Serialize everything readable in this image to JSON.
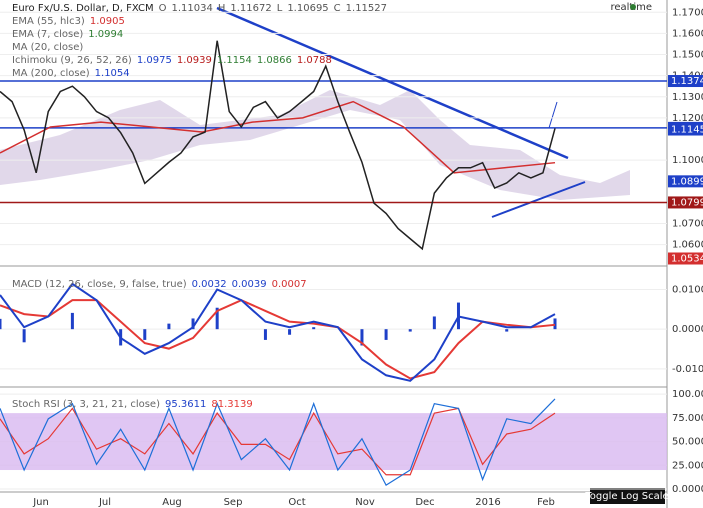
{
  "header": {
    "symbol": "Euro Fx/U.S. Dollar, D, FXCM",
    "ohlc": [
      {
        "label": "O",
        "value": "1.11034"
      },
      {
        "label": "H",
        "value": "1.11672"
      },
      {
        "label": "L",
        "value": "1.10695"
      },
      {
        "label": "C",
        "value": "1.11527"
      }
    ],
    "realtime": "realtime"
  },
  "indicators": [
    {
      "label": "EMA (55, hlc3)",
      "values": [
        {
          "text": "1.0905",
          "color": "#d32f2f"
        }
      ]
    },
    {
      "label": "EMA (7, close)",
      "values": [
        {
          "text": "1.0994",
          "color": "#2e7d32"
        }
      ]
    },
    {
      "label": "MA (20, close)",
      "values": []
    },
    {
      "label": "Ichimoku (9, 26, 52, 26)",
      "values": [
        {
          "text": "1.0975",
          "color": "#1e40c8"
        },
        {
          "text": "1.0939",
          "color": "#b71c1c"
        },
        {
          "text": "1.1154",
          "color": "#2e7d32"
        },
        {
          "text": "1.0866",
          "color": "#2e7d32"
        },
        {
          "text": "1.0788",
          "color": "#b71c1c"
        }
      ]
    },
    {
      "label": "MA (200, close)",
      "values": [
        {
          "text": "1.1054",
          "color": "#1e40c8"
        }
      ]
    }
  ],
  "price_pane": {
    "ylim": [
      1.0499,
      1.1758
    ],
    "yticks": [
      {
        "value": 1.17,
        "label": "1.17000"
      },
      {
        "value": 1.16,
        "label": "1.16000"
      },
      {
        "value": 1.15,
        "label": "1.15000"
      },
      {
        "value": 1.14,
        "label": "1.14000"
      },
      {
        "value": 1.13,
        "label": "1.13000"
      },
      {
        "value": 1.12,
        "label": "1.12000"
      },
      {
        "value": 1.1,
        "label": "1.10000"
      },
      {
        "value": 1.07,
        "label": "1.07000"
      },
      {
        "value": 1.06,
        "label": "1.06000"
      }
    ],
    "price_labels": [
      {
        "value": 1.13745,
        "label": "1.13745",
        "color": "#1e40c8",
        "line": true
      },
      {
        "value": 1.11527,
        "label": "1.11527",
        "color": "#1e40c8",
        "line": true
      },
      {
        "value": 1.1145,
        "label": "1.11450",
        "color": "#1e40c8",
        "line": false
      },
      {
        "value": 1.08997,
        "label": "1.08997",
        "color": "#1e40c8",
        "line": false
      },
      {
        "value": 1.07998,
        "label": "1.07998",
        "color": "#a01818",
        "line": true
      },
      {
        "value": 1.05345,
        "label": "1.05345",
        "color": "#d32f2f",
        "line": false
      }
    ],
    "close": {
      "name": "close",
      "color": "#222",
      "values": [
        1.1325,
        1.1277,
        1.1143,
        1.094,
        1.123,
        1.1325,
        1.135,
        1.13,
        1.123,
        1.12,
        1.113,
        1.1034,
        1.089,
        1.094,
        1.099,
        1.1034,
        1.111,
        1.1133,
        1.1565,
        1.123,
        1.1157,
        1.125,
        1.1277,
        1.12,
        1.123,
        1.1277,
        1.1325,
        1.1445,
        1.1277,
        1.113,
        1.099,
        1.0796,
        1.0748,
        1.0676,
        1.0628,
        1.058,
        1.0844,
        1.0916,
        1.0964,
        1.0964,
        1.0988,
        1.0868,
        1.0892,
        1.094,
        1.0916,
        1.094,
        1.115
      ]
    },
    "ema55": {
      "name": "EMA (55, hlc3)",
      "color": "#d32f2f",
      "values": [
        1.1034,
        1.1157,
        1.118,
        1.1157,
        1.1133,
        1.118,
        1.12,
        1.1277,
        1.1157,
        1.094,
        1.0964,
        1.0988
      ]
    }
  },
  "macd_pane": {
    "label": "MACD (12, 26, close, 9, false, true)",
    "readouts": [
      {
        "text": "0.0032",
        "color": "#1e40c8"
      },
      {
        "text": "0.0039",
        "color": "#1e40c8"
      },
      {
        "text": "0.0007",
        "color": "#d32f2f"
      }
    ],
    "ylim": [
      -0.0143,
      0.0154
    ],
    "yticks": [
      {
        "value": 0.01,
        "label": "0.0100"
      },
      {
        "value": 0,
        "label": "0.0000"
      },
      {
        "value": -0.01,
        "label": "-0.0100"
      }
    ],
    "macd": {
      "color": "#1e40c8",
      "values": [
        0.0086,
        0.0005,
        0.0032,
        0.0114,
        0.0073,
        -0.0022,
        -0.0062,
        -0.0035,
        0.0005,
        0.01,
        0.0073,
        0.0019,
        0.0005,
        0.0019,
        0.0005,
        -0.0076,
        -0.0116,
        -0.013,
        -0.0076,
        0.0032,
        0.0019,
        0.0005,
        0.0005,
        0.0038
      ]
    },
    "signal": {
      "color": "#e53935",
      "values": [
        0.006,
        0.0038,
        0.0032,
        0.0073,
        0.0073,
        0.0019,
        -0.0035,
        -0.0049,
        -0.0022,
        0.0046,
        0.0073,
        0.0046,
        0.0019,
        0.0014,
        0.0005,
        -0.0035,
        -0.0089,
        -0.0124,
        -0.0108,
        -0.0035,
        0.0019,
        0.0011,
        0.0005,
        0.0011
      ]
    },
    "histogram": {
      "color": "#1e40c8",
      "values": [
        0.0026,
        -0.0033,
        0,
        0.0041,
        0,
        -0.0041,
        -0.0027,
        0.0014,
        0.0027,
        0.0054,
        0,
        -0.0027,
        -0.0014,
        0.0005,
        0,
        -0.0041,
        -0.0027,
        -0.0006,
        0.0032,
        0.0067,
        0,
        -0.0006,
        0,
        0.0027
      ]
    }
  },
  "stoch_pane": {
    "label": "Stoch RSI (3, 3, 21, 21, close)",
    "readouts": [
      {
        "text": "95.3611",
        "color": "#1e40c8"
      },
      {
        "text": "81.3139",
        "color": "#e53935"
      }
    ],
    "ylim": [
      -3.2,
      106.5
    ],
    "band": [
      20,
      80
    ],
    "yticks": [
      {
        "value": 100,
        "label": "100.0000"
      },
      {
        "value": 75,
        "label": "75.0000"
      },
      {
        "value": 50,
        "label": "50.0000"
      },
      {
        "value": 25,
        "label": "25.0000"
      },
      {
        "value": 0,
        "label": "0.0000"
      }
    ],
    "k": {
      "color": "#1e6fd8",
      "values": [
        85,
        20,
        74,
        90,
        26,
        63,
        20,
        85,
        20,
        90,
        31,
        53,
        20,
        90,
        20,
        53,
        4,
        20,
        90,
        85,
        10,
        74,
        69,
        95
      ]
    },
    "d": {
      "color": "#e53935",
      "values": [
        74,
        37,
        53,
        85,
        42,
        53,
        37,
        69,
        37,
        80,
        47,
        47,
        31,
        80,
        37,
        42,
        15,
        15,
        80,
        85,
        26,
        58,
        63,
        80
      ]
    }
  },
  "x_axis": [
    "Jun",
    "Jul",
    "Aug",
    "Sep",
    "Oct",
    "Nov",
    "Dec",
    "2016",
    "Feb"
  ],
  "button": "Toggle Log Scale"
}
